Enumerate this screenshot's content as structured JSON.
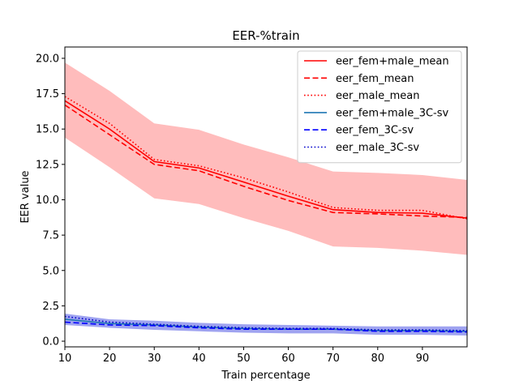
{
  "chart_data": {
    "type": "line",
    "title": "EER-%train",
    "xlabel": "Train percentage",
    "ylabel": "EER value",
    "xlim": [
      10,
      100
    ],
    "ylim": [
      -0.4,
      20.8
    ],
    "xticks": [
      10,
      20,
      30,
      40,
      50,
      60,
      70,
      80,
      90
    ],
    "yticks": [
      0.0,
      2.5,
      5.0,
      7.5,
      10.0,
      12.5,
      15.0,
      17.5,
      20.0
    ],
    "x": [
      10,
      20,
      30,
      40,
      50,
      60,
      70,
      80,
      90,
      100
    ],
    "bands": [
      {
        "name": "fem+male_mean_band",
        "color": "#ffbcbc",
        "lower": [
          14.4,
          12.3,
          10.1,
          9.7,
          8.7,
          7.8,
          6.7,
          6.6,
          6.4,
          6.1
        ],
        "upper": [
          19.7,
          17.7,
          15.4,
          14.95,
          13.9,
          13.0,
          12.0,
          11.9,
          11.75,
          11.4
        ]
      },
      {
        "name": "fem+male_3C-sv_band",
        "color": "#9fa3f0",
        "lower": [
          1.15,
          0.95,
          0.8,
          0.7,
          0.6,
          0.55,
          0.55,
          0.45,
          0.45,
          0.4
        ],
        "upper": [
          1.95,
          1.55,
          1.45,
          1.3,
          1.2,
          1.15,
          1.1,
          1.05,
          1.05,
          1.05
        ]
      }
    ],
    "series": [
      {
        "name": "eer_fem+male_mean",
        "color": "#ff0000",
        "style": "solid",
        "values": [
          17.0,
          15.0,
          12.7,
          12.25,
          11.25,
          10.25,
          9.3,
          9.1,
          9.05,
          8.7
        ]
      },
      {
        "name": "eer_fem_mean",
        "color": "#ff0000",
        "style": "dashed",
        "values": [
          16.7,
          14.6,
          12.5,
          12.05,
          10.95,
          9.95,
          9.1,
          9.0,
          8.85,
          8.75
        ]
      },
      {
        "name": "eer_male_mean",
        "color": "#ff0000",
        "style": "dotted",
        "values": [
          17.3,
          15.4,
          12.85,
          12.4,
          11.55,
          10.55,
          9.45,
          9.25,
          9.25,
          8.65
        ]
      },
      {
        "name": "eer_fem+male_3C-sv",
        "color": "#1f77b4",
        "style": "solid",
        "values": [
          1.55,
          1.25,
          1.15,
          1.0,
          0.9,
          0.85,
          0.85,
          0.75,
          0.75,
          0.7
        ]
      },
      {
        "name": "eer_fem_3C-sv",
        "color": "#0000ff",
        "style": "dashed",
        "values": [
          1.35,
          1.15,
          1.1,
          0.95,
          0.85,
          0.85,
          0.85,
          0.7,
          0.7,
          0.65
        ]
      },
      {
        "name": "eer_male_3C-sv",
        "color": "#0000cc",
        "style": "dotted",
        "values": [
          1.75,
          1.35,
          1.2,
          1.05,
          0.95,
          0.9,
          0.9,
          0.8,
          0.8,
          0.75
        ]
      }
    ],
    "legend": {
      "position": "top-right"
    }
  }
}
